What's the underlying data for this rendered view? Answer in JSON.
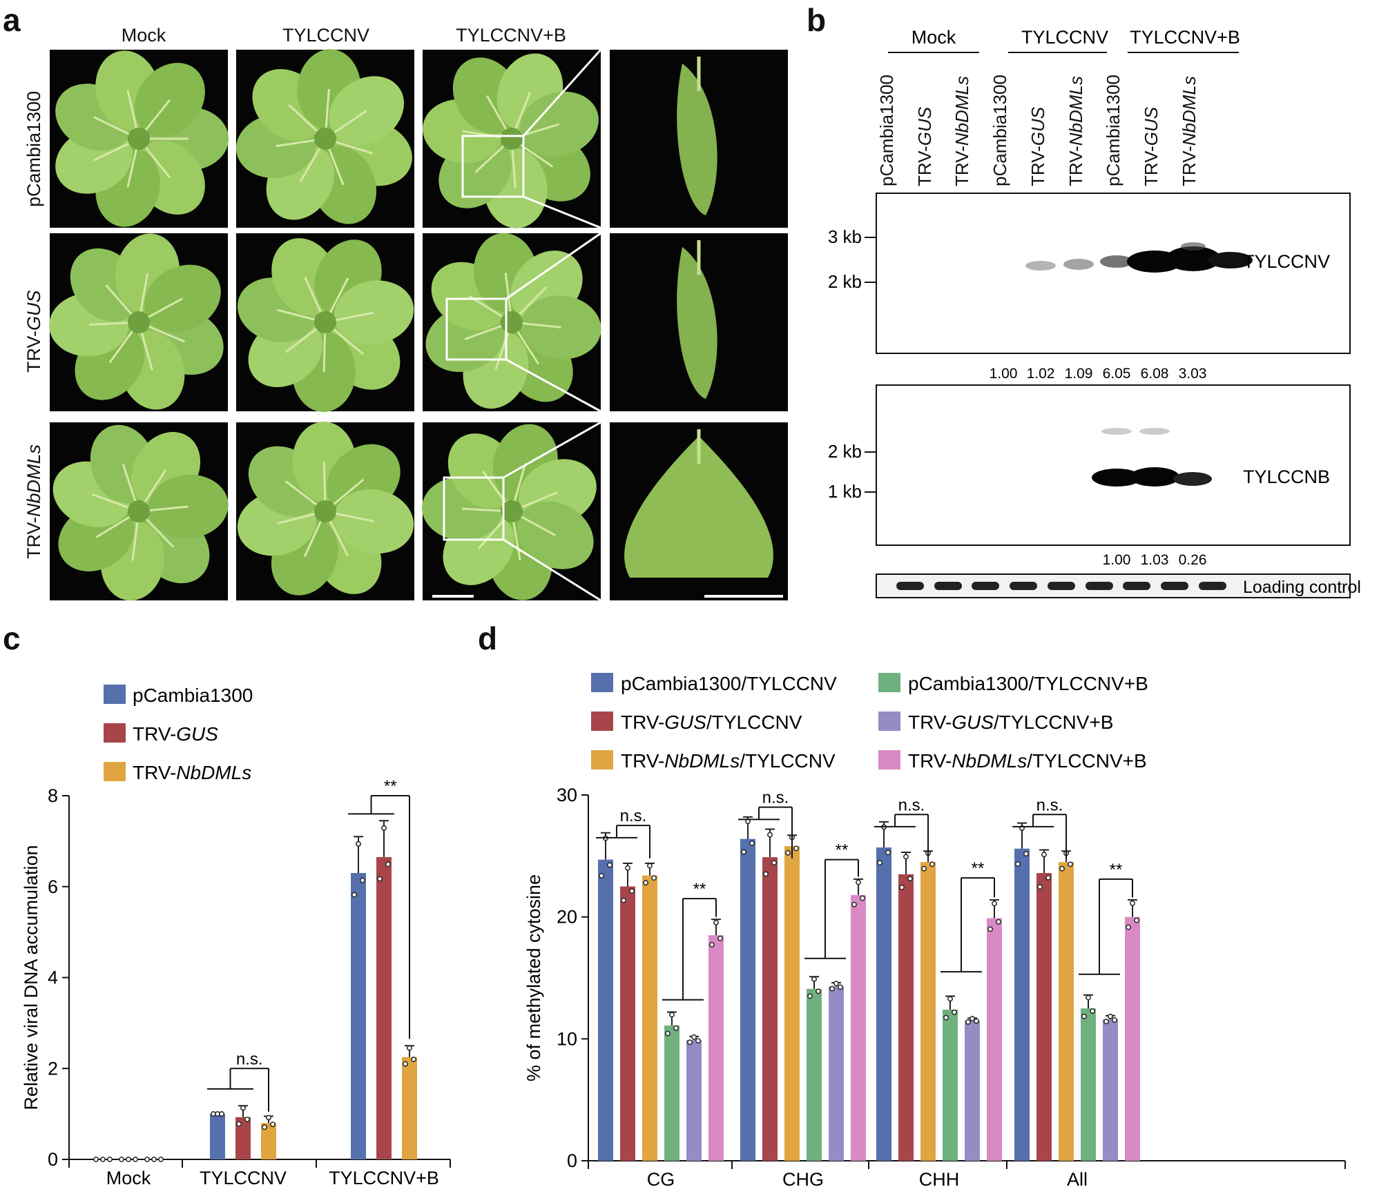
{
  "panel_a": {
    "label": "a",
    "columns": [
      "Mock",
      "TYLCCNV",
      "TYLCCNV+B"
    ],
    "rows": [
      {
        "plain": "pCambia1300",
        "italic": ""
      },
      {
        "plain": "TRV-",
        "italic": "GUS"
      },
      {
        "plain": "TRV-",
        "italic": "NbDMLs"
      }
    ]
  },
  "panel_b": {
    "label": "b",
    "groups": [
      "Mock",
      "TYLCCNV",
      "TYLCCNV+B"
    ],
    "lanes": [
      {
        "plain": "pCambia1300",
        "italic": ""
      },
      {
        "plain": "TRV-",
        "italic": "GUS"
      },
      {
        "plain": "TRV-",
        "italic": "NbDMLs"
      },
      {
        "plain": "pCambia1300",
        "italic": ""
      },
      {
        "plain": "TRV-",
        "italic": "GUS"
      },
      {
        "plain": "TRV-",
        "italic": "NbDMLs"
      },
      {
        "plain": "pCambia1300",
        "italic": ""
      },
      {
        "plain": "TRV-",
        "italic": "GUS"
      },
      {
        "plain": "TRV-",
        "italic": "NbDMLs"
      }
    ],
    "blot1": {
      "name": "TYLCCNV",
      "markers": [
        "3 kb",
        "2 kb"
      ],
      "quant": [
        "1.00",
        "1.02",
        "1.09",
        "6.05",
        "6.08",
        "3.03"
      ]
    },
    "blot2": {
      "name": "TYLCCNB",
      "markers": [
        "2 kb",
        "1 kb"
      ],
      "quant": [
        "1.00",
        "1.03",
        "0.26"
      ]
    },
    "loading": "Loading control"
  },
  "chart_data": [
    {
      "panel": "c",
      "type": "bar",
      "ylabel": "Relative viral DNA accumulation",
      "ylim": [
        0,
        8
      ],
      "yticks": [
        "0",
        "2",
        "4",
        "6",
        "8"
      ],
      "categories": [
        "Mock",
        "TYLCCNV",
        "TYLCCNV+B"
      ],
      "legend": [
        {
          "plain": "pCambia1300",
          "italic": "",
          "color": "#5570ad"
        },
        {
          "plain": "TRV-",
          "italic": "GUS",
          "color": "#a8454a"
        },
        {
          "plain": "TRV-",
          "italic": "NbDMLs",
          "color": "#e0a540"
        }
      ],
      "series": [
        {
          "name": "pCambia1300",
          "color": "#5570ad",
          "values": [
            0,
            1.0,
            6.3
          ],
          "err": [
            0,
            0,
            0.8
          ]
        },
        {
          "name": "TRV-GUS",
          "color": "#a8454a",
          "values": [
            0,
            0.93,
            6.65
          ],
          "err": [
            0,
            0.25,
            0.8
          ]
        },
        {
          "name": "TRV-NbDMLs",
          "color": "#e0a540",
          "values": [
            0,
            0.8,
            2.25
          ],
          "err": [
            0,
            0.15,
            0.25
          ]
        }
      ],
      "annotations": [
        "n.s.",
        "**"
      ]
    },
    {
      "panel": "d",
      "type": "bar",
      "ylabel": "% of methylated cytosine",
      "ylim": [
        0,
        30
      ],
      "yticks": [
        "0",
        "10",
        "20",
        "30"
      ],
      "categories": [
        "CG",
        "CHG",
        "CHH",
        "All"
      ],
      "legend": [
        {
          "plain": "pCambia1300/TYLCCNV",
          "italic": "",
          "after": "",
          "color": "#5570ad"
        },
        {
          "plain": "pCambia1300/TYLCCNV+B",
          "italic": "",
          "after": "",
          "color": "#6fb07f"
        },
        {
          "plain": "TRV-",
          "italic": "GUS",
          "after": "/TYLCCNV",
          "color": "#a8454a"
        },
        {
          "plain": "TRV-",
          "italic": "GUS",
          "after": "/TYLCCNV+B",
          "color": "#948cc4"
        },
        {
          "plain": "TRV-",
          "italic": "NbDMLs",
          "after": "/TYLCCNV",
          "color": "#e0a540"
        },
        {
          "plain": "TRV-",
          "italic": "NbDMLs",
          "after": "/TYLCCNV+B",
          "color": "#d98ac4"
        }
      ],
      "series": [
        {
          "name": "pCambia1300/TYLCCNV",
          "color": "#5570ad",
          "values": [
            24.7,
            26.4,
            25.7,
            25.6
          ],
          "err": [
            2.2,
            1.8,
            2.1,
            2.1
          ]
        },
        {
          "name": "TRV-GUS/TYLCCNV",
          "color": "#a8454a",
          "values": [
            22.5,
            24.9,
            23.5,
            23.6
          ],
          "err": [
            1.9,
            2.3,
            1.8,
            1.9
          ]
        },
        {
          "name": "TRV-NbDMLs/TYLCCNV",
          "color": "#e0a540",
          "values": [
            23.4,
            25.8,
            24.5,
            24.5
          ],
          "err": [
            1.0,
            0.9,
            0.9,
            0.9
          ]
        },
        {
          "name": "pCambia1300/TYLCCNV+B",
          "color": "#6fb07f",
          "values": [
            11.1,
            14.1,
            12.4,
            12.5
          ],
          "err": [
            1.1,
            1.0,
            1.1,
            1.1
          ]
        },
        {
          "name": "TRV-GUS/TYLCCNV+B",
          "color": "#948cc4",
          "values": [
            9.9,
            14.3,
            11.5,
            11.6
          ],
          "err": [
            0.3,
            0.3,
            0.2,
            0.3
          ]
        },
        {
          "name": "TRV-NbDMLs/TYLCCNV+B",
          "color": "#d98ac4",
          "values": [
            18.5,
            21.8,
            19.9,
            20.0
          ],
          "err": [
            1.3,
            1.3,
            1.5,
            1.4
          ]
        }
      ],
      "annotations": [
        "n.s.",
        "**"
      ]
    }
  ]
}
